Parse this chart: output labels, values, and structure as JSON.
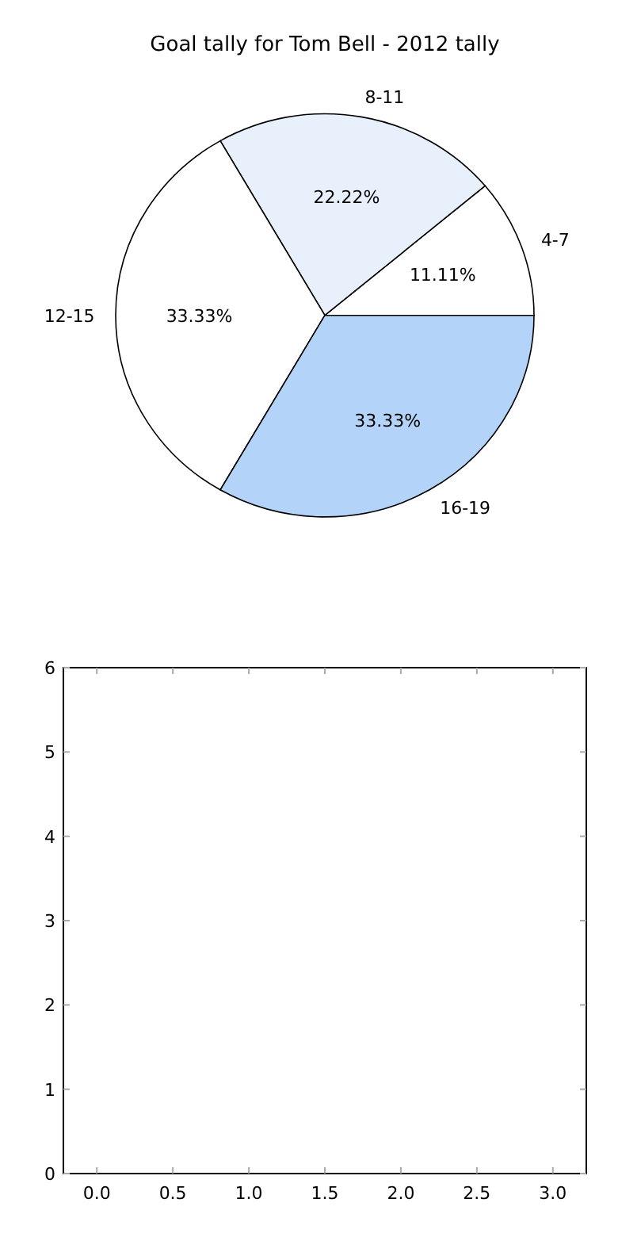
{
  "chart_data": [
    {
      "type": "pie",
      "title": "Goal tally for Tom Bell - 2012 tally",
      "categories": [
        "4-7",
        "8-11",
        "12-15",
        "16-19"
      ],
      "values": [
        11.11,
        22.22,
        33.33,
        33.33
      ],
      "colors": [
        "#ffffff",
        "#e8f0fc",
        "#ffffff",
        "#b3d4f8"
      ],
      "value_labels": [
        "11.11%",
        "22.22%",
        "33.33%",
        "33.33%"
      ]
    },
    {
      "type": "scatter",
      "xlim": [
        -0.22,
        3.22
      ],
      "ylim": [
        0,
        6
      ],
      "xticks": [
        {
          "value": 0,
          "label": "0.0"
        },
        {
          "value": 0.5,
          "label": "0.5"
        },
        {
          "value": 1,
          "label": "1.0"
        },
        {
          "value": 1.5,
          "label": "1.5"
        },
        {
          "value": 2,
          "label": "2.0"
        },
        {
          "value": 2.5,
          "label": "2.5"
        },
        {
          "value": 3,
          "label": "3.0"
        }
      ],
      "yticks": [
        0,
        1,
        2,
        3,
        4,
        5,
        6
      ]
    }
  ]
}
